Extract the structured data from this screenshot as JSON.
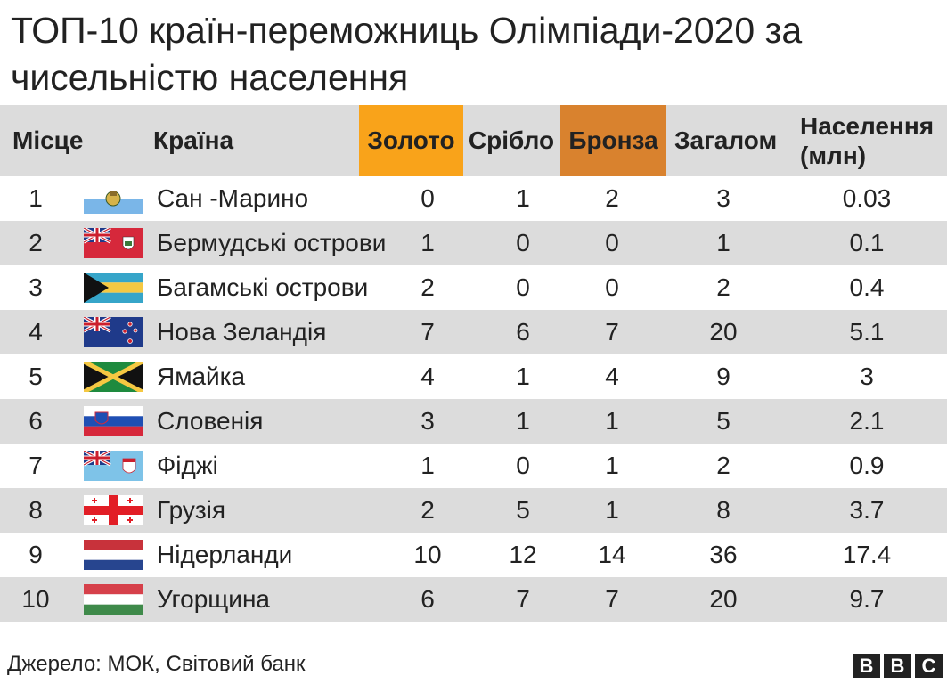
{
  "title": "ТОП-10 країн-переможниць Олімпіади-2020 за чисельністю населення",
  "header": {
    "place": "Місце",
    "country": "Країна",
    "gold": "Золото",
    "silver": "Срібло",
    "bronze": "Бронза",
    "total": "Загалом",
    "population": "Населення (млн)"
  },
  "source": "Джерело: МОК, Світовий банк",
  "logo": {
    "b1": "B",
    "b2": "B",
    "c": "C"
  },
  "colors": {
    "gold": "#f9a31a",
    "bronze": "#d9822e",
    "row_alt": "#dcdcdc"
  },
  "chart_data": {
    "type": "table",
    "columns": [
      "Місце",
      "Країна",
      "Золото",
      "Срібло",
      "Бронза",
      "Загалом",
      "Населення (млн)"
    ],
    "rows": [
      {
        "place": "1",
        "country": "Сан -Марино",
        "flag": "san-marino-flag",
        "gold": "0",
        "silver": "1",
        "bronze": "2",
        "total": "3",
        "population": "0.03"
      },
      {
        "place": "2",
        "country": "Бермудські острови",
        "flag": "bermuda-flag",
        "gold": "1",
        "silver": "0",
        "bronze": "0",
        "total": "1",
        "population": "0.1"
      },
      {
        "place": "3",
        "country": "Багамські острови",
        "flag": "bahamas-flag",
        "gold": "2",
        "silver": "0",
        "bronze": "0",
        "total": "2",
        "population": "0.4"
      },
      {
        "place": "4",
        "country": "Нова Зеландія",
        "flag": "new-zealand-flag",
        "gold": "7",
        "silver": "6",
        "bronze": "7",
        "total": "20",
        "population": "5.1"
      },
      {
        "place": "5",
        "country": "Ямайка",
        "flag": "jamaica-flag",
        "gold": "4",
        "silver": "1",
        "bronze": "4",
        "total": "9",
        "population": "3"
      },
      {
        "place": "6",
        "country": "Словенія",
        "flag": "slovenia-flag",
        "gold": "3",
        "silver": "1",
        "bronze": "1",
        "total": "5",
        "population": "2.1"
      },
      {
        "place": "7",
        "country": "Фіджі",
        "flag": "fiji-flag",
        "gold": "1",
        "silver": "0",
        "bronze": "1",
        "total": "2",
        "population": "0.9"
      },
      {
        "place": "8",
        "country": "Грузія",
        "flag": "georgia-flag",
        "gold": "2",
        "silver": "5",
        "bronze": "1",
        "total": "8",
        "population": "3.7"
      },
      {
        "place": "9",
        "country": "Нідерланди",
        "flag": "netherlands-flag",
        "gold": "10",
        "silver": "12",
        "bronze": "14",
        "total": "36",
        "population": "17.4"
      },
      {
        "place": "10",
        "country": "Угорщина",
        "flag": "hungary-flag",
        "gold": "6",
        "silver": "7",
        "bronze": "7",
        "total": "20",
        "population": "9.7"
      }
    ]
  }
}
